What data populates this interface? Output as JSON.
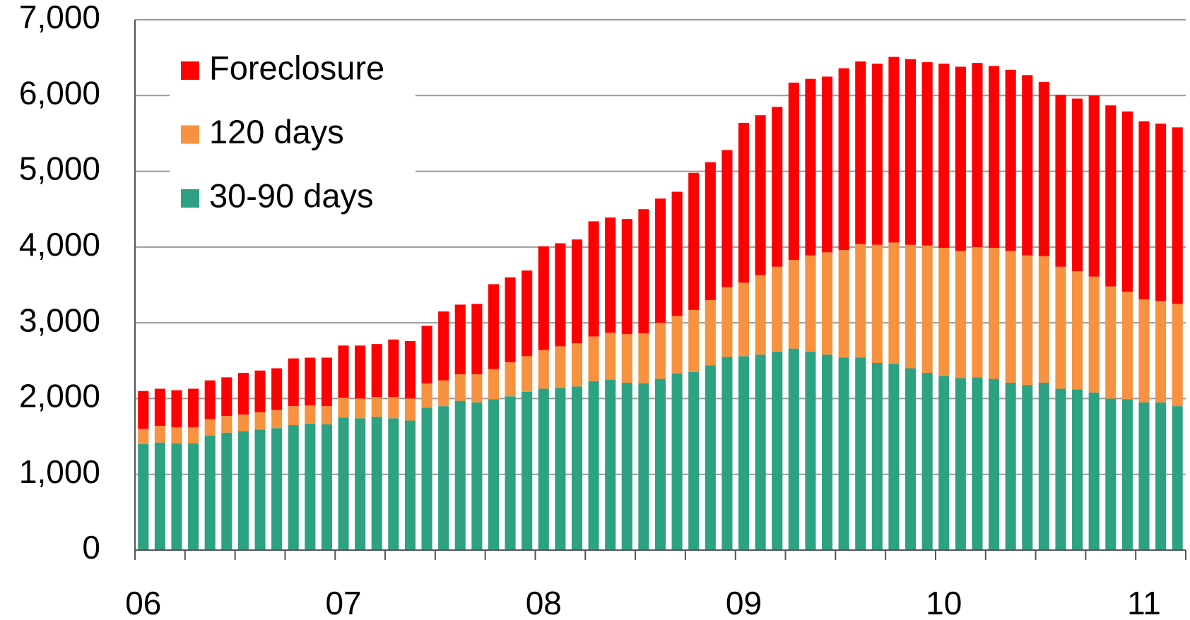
{
  "chart_data": {
    "type": "stacked_bar",
    "categories": [
      "06",
      null,
      null,
      null,
      null,
      null,
      null,
      null,
      null,
      null,
      null,
      null,
      "07",
      null,
      null,
      null,
      null,
      null,
      null,
      null,
      null,
      null,
      null,
      null,
      "08",
      null,
      null,
      null,
      null,
      null,
      null,
      null,
      null,
      null,
      null,
      null,
      "09",
      null,
      null,
      null,
      null,
      null,
      null,
      null,
      null,
      null,
      null,
      null,
      "10",
      null,
      null,
      null,
      null,
      null,
      null,
      null,
      null,
      null,
      null,
      null,
      "11",
      null,
      null
    ],
    "series": [
      {
        "name": "30-90 days",
        "color": "#2ca283",
        "values": [
          1400,
          1420,
          1410,
          1410,
          1510,
          1550,
          1570,
          1590,
          1610,
          1650,
          1670,
          1660,
          1750,
          1740,
          1760,
          1740,
          1710,
          1880,
          1900,
          1970,
          1950,
          1990,
          2030,
          2090,
          2130,
          2140,
          2160,
          2230,
          2250,
          2210,
          2200,
          2260,
          2330,
          2350,
          2440,
          2550,
          2560,
          2580,
          2620,
          2660,
          2620,
          2580,
          2540,
          2540,
          2470,
          2460,
          2400,
          2340,
          2300,
          2270,
          2280,
          2260,
          2210,
          2180,
          2210,
          2130,
          2120,
          2080,
          2000,
          1990,
          1950,
          1950,
          1900
        ]
      },
      {
        "name": "120 days",
        "color": "#f79240",
        "values": [
          200,
          220,
          210,
          210,
          220,
          220,
          220,
          230,
          240,
          250,
          240,
          240,
          260,
          260,
          260,
          280,
          290,
          320,
          340,
          350,
          370,
          400,
          450,
          470,
          510,
          550,
          570,
          590,
          620,
          640,
          660,
          740,
          760,
          820,
          860,
          920,
          970,
          1050,
          1120,
          1170,
          1270,
          1350,
          1420,
          1500,
          1560,
          1600,
          1630,
          1680,
          1690,
          1680,
          1720,
          1730,
          1740,
          1710,
          1670,
          1610,
          1560,
          1530,
          1480,
          1420,
          1360,
          1340,
          1350
        ]
      },
      {
        "name": "Foreclosure",
        "color": "#ff0000",
        "values": [
          500,
          490,
          490,
          510,
          510,
          510,
          550,
          550,
          550,
          630,
          630,
          640,
          690,
          700,
          700,
          760,
          760,
          760,
          910,
          920,
          930,
          1120,
          1120,
          1130,
          1370,
          1360,
          1370,
          1520,
          1520,
          1520,
          1640,
          1640,
          1640,
          1810,
          1820,
          1810,
          2110,
          2110,
          2110,
          2340,
          2330,
          2320,
          2400,
          2410,
          2390,
          2450,
          2450,
          2420,
          2430,
          2430,
          2430,
          2400,
          2390,
          2380,
          2300,
          2270,
          2280,
          2390,
          2390,
          2380,
          2350,
          2340,
          2330
        ]
      }
    ],
    "ylim": [
      0,
      7000
    ],
    "yticks": [
      0,
      {
        "value": 1000,
        "label": "1,000"
      },
      {
        "value": 2000,
        "label": "2,000"
      },
      {
        "value": 3000,
        "label": "3,000"
      },
      {
        "value": 4000,
        "label": "4,000"
      },
      {
        "value": 5000,
        "label": "5,000"
      },
      {
        "value": 6000,
        "label": "6,000"
      },
      {
        "value": 7000,
        "label": "7,000"
      }
    ],
    "grid": true,
    "legend": "upper left"
  }
}
